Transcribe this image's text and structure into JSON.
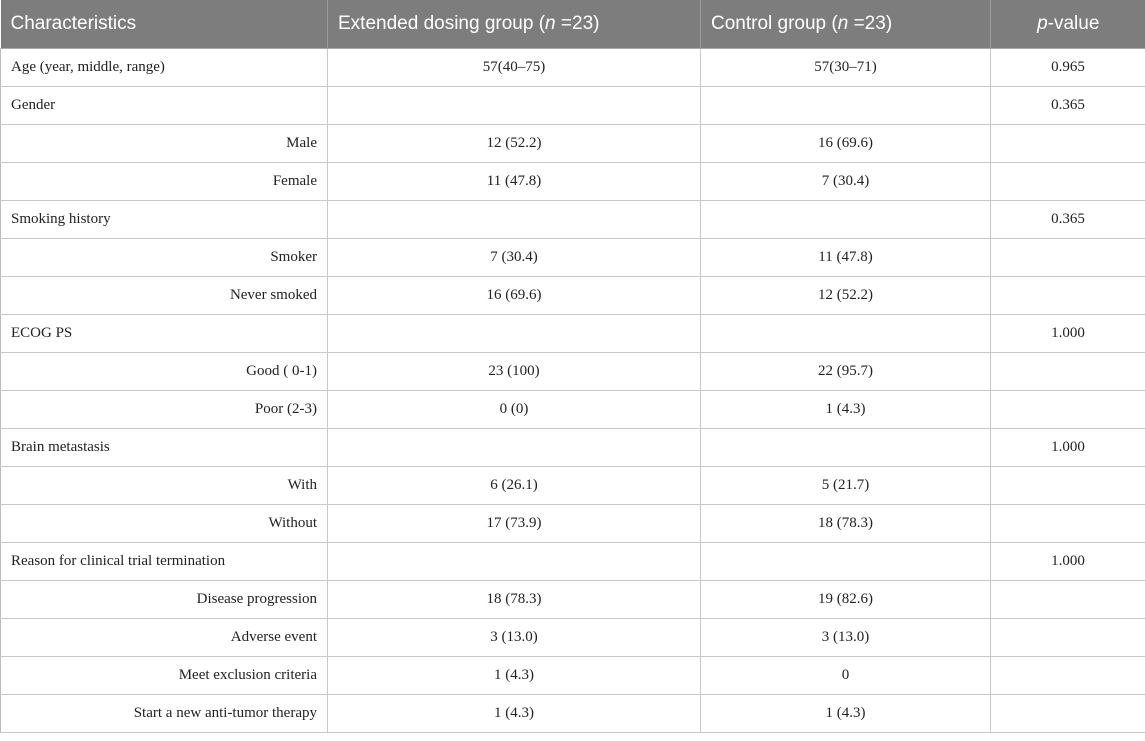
{
  "table": {
    "headers": [
      {
        "text": "Characteristics"
      },
      {
        "prefix": "Extended dosing group (",
        "italic": "n",
        "suffix": " =23)"
      },
      {
        "prefix": "Control group (",
        "italic": "n",
        "suffix": " =23)"
      },
      {
        "prefix": "",
        "italic": "p",
        "suffix": "-value"
      }
    ],
    "rows": [
      {
        "kind": "group",
        "label": "Age (year, middle, range)",
        "extended": "57(40–75)",
        "control": "57(30–71)",
        "p": "0.965"
      },
      {
        "kind": "group",
        "label": "Gender",
        "extended": "",
        "control": "",
        "p": "0.365"
      },
      {
        "kind": "sub",
        "label": "Male",
        "extended": "12 (52.2)",
        "control": "16 (69.6)",
        "p": ""
      },
      {
        "kind": "sub",
        "label": "Female",
        "extended": "11 (47.8)",
        "control": "7 (30.4)",
        "p": ""
      },
      {
        "kind": "group",
        "label": "Smoking history",
        "extended": "",
        "control": "",
        "p": "0.365"
      },
      {
        "kind": "sub",
        "label": "Smoker",
        "extended": "7 (30.4)",
        "control": "11 (47.8)",
        "p": ""
      },
      {
        "kind": "sub",
        "label": "Never smoked",
        "extended": "16 (69.6)",
        "control": "12 (52.2)",
        "p": ""
      },
      {
        "kind": "group",
        "label": "ECOG PS",
        "extended": "",
        "control": "",
        "p": "1.000"
      },
      {
        "kind": "sub",
        "label": "Good ( 0-1)",
        "extended": "23 (100)",
        "control": "22 (95.7)",
        "p": ""
      },
      {
        "kind": "sub",
        "label": "Poor (2-3)",
        "extended": "0 (0)",
        "control": "1 (4.3)",
        "p": ""
      },
      {
        "kind": "group",
        "label": "Brain metastasis",
        "extended": "",
        "control": "",
        "p": "1.000"
      },
      {
        "kind": "sub",
        "label": "With",
        "extended": "6 (26.1)",
        "control": "5 (21.7)",
        "p": ""
      },
      {
        "kind": "sub",
        "label": "Without",
        "extended": "17 (73.9)",
        "control": "18 (78.3)",
        "p": ""
      },
      {
        "kind": "group",
        "label": "Reason for clinical trial termination",
        "extended": "",
        "control": "",
        "p": "1.000"
      },
      {
        "kind": "sub",
        "label": "Disease progression",
        "extended": "18 (78.3)",
        "control": "19 (82.6)",
        "p": ""
      },
      {
        "kind": "sub",
        "label": "Adverse event",
        "extended": "3 (13.0)",
        "control": "3 (13.0)",
        "p": ""
      },
      {
        "kind": "sub",
        "label": "Meet exclusion criteria",
        "extended": "1 (4.3)",
        "control": "0",
        "p": ""
      },
      {
        "kind": "sub",
        "label": "Start a new anti-tumor therapy",
        "extended": "1 (4.3)",
        "control": "1 (4.3)",
        "p": ""
      }
    ]
  },
  "colors": {
    "header_bg": "#7d7d7d",
    "header_text": "#ffffff",
    "grid": "#c8c8c8"
  }
}
